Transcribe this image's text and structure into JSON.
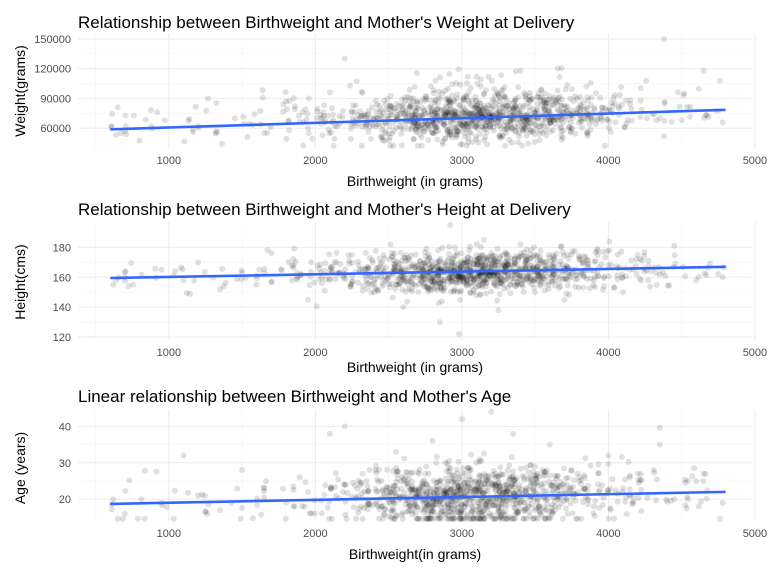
{
  "chart_data": [
    {
      "type": "scatter",
      "title": "Relationship between Birthweight and Mother's Weight at Delivery",
      "xlabel": "Birthweight (in grams)",
      "ylabel": "Weight(grams)",
      "xlim": [
        380,
        4980
      ],
      "ylim": [
        40000,
        155000
      ],
      "x_ticks": [
        1000,
        2000,
        3000,
        4000,
        5000
      ],
      "y_ticks": [
        60000,
        90000,
        120000,
        150000
      ],
      "x_tick_labels": [
        "1000",
        "2000",
        "3000",
        "4000",
        "5000"
      ],
      "y_tick_labels": [
        "60000",
        "90000",
        "120000",
        "150000"
      ],
      "grid": true,
      "point_color": "#000000",
      "point_opacity": 0.12,
      "fit_line_color": "#3366FF",
      "trend_line": [
        {
          "x": 600,
          "y": 58800
        },
        {
          "x": 4800,
          "y": 78500
        }
      ],
      "points": [
        {
          "x": 640,
          "y": 53000
        },
        {
          "x": 700,
          "y": 57000
        },
        {
          "x": 920,
          "y": 76000
        },
        {
          "x": 1200,
          "y": 62000
        },
        {
          "x": 1450,
          "y": 70000
        },
        {
          "x": 1650,
          "y": 55000
        },
        {
          "x": 1800,
          "y": 87000
        },
        {
          "x": 1950,
          "y": 60000
        },
        {
          "x": 2100,
          "y": 96000
        },
        {
          "x": 2200,
          "y": 130000
        },
        {
          "x": 2350,
          "y": 73000
        },
        {
          "x": 2450,
          "y": 52000
        },
        {
          "x": 2550,
          "y": 68000
        },
        {
          "x": 2650,
          "y": 90000
        },
        {
          "x": 2750,
          "y": 61000
        },
        {
          "x": 2820,
          "y": 108000
        },
        {
          "x": 2900,
          "y": 57000
        },
        {
          "x": 2950,
          "y": 74000
        },
        {
          "x": 3000,
          "y": 63000
        },
        {
          "x": 3050,
          "y": 85000
        },
        {
          "x": 3100,
          "y": 112000
        },
        {
          "x": 3150,
          "y": 59000
        },
        {
          "x": 3200,
          "y": 72000
        },
        {
          "x": 3250,
          "y": 95000
        },
        {
          "x": 3300,
          "y": 66000
        },
        {
          "x": 3350,
          "y": 80000
        },
        {
          "x": 3400,
          "y": 118000
        },
        {
          "x": 3450,
          "y": 62000
        },
        {
          "x": 3500,
          "y": 75000
        },
        {
          "x": 3550,
          "y": 91000
        },
        {
          "x": 3600,
          "y": 65000
        },
        {
          "x": 3700,
          "y": 83000
        },
        {
          "x": 3750,
          "y": 60000
        },
        {
          "x": 3850,
          "y": 102000
        },
        {
          "x": 3950,
          "y": 70000
        },
        {
          "x": 4050,
          "y": 66000
        },
        {
          "x": 4150,
          "y": 88000
        },
        {
          "x": 4300,
          "y": 74000
        },
        {
          "x": 4380,
          "y": 150000
        },
        {
          "x": 4500,
          "y": 68000
        },
        {
          "x": 4650,
          "y": 118000
        },
        {
          "x": 4760,
          "y": 108000
        },
        {
          "x": 4780,
          "y": 66000
        }
      ]
    },
    {
      "type": "scatter",
      "title": "Relationship between Birthweight and Mother's Height at Delivery",
      "xlabel": "Birthweight (in grams)",
      "ylabel": "Height(cms)",
      "xlim": [
        380,
        4980
      ],
      "ylim": [
        118,
        197
      ],
      "x_ticks": [
        1000,
        2000,
        3000,
        4000,
        5000
      ],
      "y_ticks": [
        120,
        140,
        160,
        180
      ],
      "x_tick_labels": [
        "1000",
        "2000",
        "3000",
        "4000",
        "5000"
      ],
      "y_tick_labels": [
        "120",
        "140",
        "160",
        "180"
      ],
      "grid": true,
      "point_color": "#000000",
      "point_opacity": 0.12,
      "fit_line_color": "#3366FF",
      "trend_line": [
        {
          "x": 600,
          "y": 159.5
        },
        {
          "x": 4800,
          "y": 167
        }
      ],
      "points": [
        {
          "x": 620,
          "y": 155
        },
        {
          "x": 700,
          "y": 160
        },
        {
          "x": 950,
          "y": 165
        },
        {
          "x": 1100,
          "y": 158
        },
        {
          "x": 1200,
          "y": 170
        },
        {
          "x": 1350,
          "y": 152
        },
        {
          "x": 1500,
          "y": 163
        },
        {
          "x": 1700,
          "y": 157
        },
        {
          "x": 1850,
          "y": 172
        },
        {
          "x": 1950,
          "y": 145
        },
        {
          "x": 2100,
          "y": 165
        },
        {
          "x": 2250,
          "y": 175
        },
        {
          "x": 2400,
          "y": 150
        },
        {
          "x": 2500,
          "y": 162
        },
        {
          "x": 2600,
          "y": 140
        },
        {
          "x": 2700,
          "y": 168
        },
        {
          "x": 2800,
          "y": 155
        },
        {
          "x": 2850,
          "y": 130
        },
        {
          "x": 2920,
          "y": 195
        },
        {
          "x": 2980,
          "y": 122
        },
        {
          "x": 3000,
          "y": 160
        },
        {
          "x": 3050,
          "y": 178
        },
        {
          "x": 3100,
          "y": 148
        },
        {
          "x": 3150,
          "y": 185
        },
        {
          "x": 3200,
          "y": 163
        },
        {
          "x": 3250,
          "y": 138
        },
        {
          "x": 3300,
          "y": 170
        },
        {
          "x": 3350,
          "y": 157
        },
        {
          "x": 3400,
          "y": 182
        },
        {
          "x": 3500,
          "y": 150
        },
        {
          "x": 3600,
          "y": 165
        },
        {
          "x": 3700,
          "y": 145
        },
        {
          "x": 3800,
          "y": 172
        },
        {
          "x": 3900,
          "y": 158
        },
        {
          "x": 4000,
          "y": 168
        },
        {
          "x": 4100,
          "y": 150
        },
        {
          "x": 4200,
          "y": 175
        },
        {
          "x": 4350,
          "y": 162
        },
        {
          "x": 4450,
          "y": 181
        },
        {
          "x": 4600,
          "y": 158
        },
        {
          "x": 4780,
          "y": 160
        }
      ]
    },
    {
      "type": "scatter",
      "title": "Linear relationship between Birthweight and Mother's Age",
      "xlabel": "Birthweight(in grams)",
      "ylabel": "Age (years)",
      "xlim": [
        380,
        4980
      ],
      "ylim": [
        14,
        44.5
      ],
      "x_ticks": [
        1000,
        2000,
        3000,
        4000,
        5000
      ],
      "y_ticks": [
        20,
        30,
        40
      ],
      "x_tick_labels": [
        "1000",
        "2000",
        "3000",
        "4000",
        "5000"
      ],
      "y_tick_labels": [
        "20",
        "30",
        "40"
      ],
      "grid": true,
      "point_color": "#000000",
      "point_opacity": 0.12,
      "fit_line_color": "#3366FF",
      "trend_line": [
        {
          "x": 600,
          "y": 18.7
        },
        {
          "x": 4800,
          "y": 22
        }
      ],
      "points": [
        {
          "x": 620,
          "y": 20
        },
        {
          "x": 700,
          "y": 16
        },
        {
          "x": 950,
          "y": 19
        },
        {
          "x": 1100,
          "y": 32
        },
        {
          "x": 1200,
          "y": 21
        },
        {
          "x": 1350,
          "y": 17
        },
        {
          "x": 1500,
          "y": 28
        },
        {
          "x": 1650,
          "y": 23
        },
        {
          "x": 1800,
          "y": 19
        },
        {
          "x": 1950,
          "y": 22
        },
        {
          "x": 2100,
          "y": 38
        },
        {
          "x": 2200,
          "y": 40
        },
        {
          "x": 2350,
          "y": 25
        },
        {
          "x": 2450,
          "y": 18
        },
        {
          "x": 2550,
          "y": 33
        },
        {
          "x": 2650,
          "y": 21
        },
        {
          "x": 2750,
          "y": 27
        },
        {
          "x": 2800,
          "y": 36
        },
        {
          "x": 2900,
          "y": 19
        },
        {
          "x": 2950,
          "y": 24
        },
        {
          "x": 3000,
          "y": 42
        },
        {
          "x": 3050,
          "y": 20
        },
        {
          "x": 3100,
          "y": 30
        },
        {
          "x": 3150,
          "y": 17
        },
        {
          "x": 3200,
          "y": 44
        },
        {
          "x": 3250,
          "y": 26
        },
        {
          "x": 3300,
          "y": 22
        },
        {
          "x": 3350,
          "y": 38
        },
        {
          "x": 3400,
          "y": 19
        },
        {
          "x": 3500,
          "y": 29
        },
        {
          "x": 3600,
          "y": 35
        },
        {
          "x": 3700,
          "y": 21
        },
        {
          "x": 3800,
          "y": 25
        },
        {
          "x": 3900,
          "y": 18
        },
        {
          "x": 4000,
          "y": 32
        },
        {
          "x": 4100,
          "y": 23
        },
        {
          "x": 4200,
          "y": 27
        },
        {
          "x": 4350,
          "y": 35
        },
        {
          "x": 4450,
          "y": 20
        },
        {
          "x": 4600,
          "y": 25
        },
        {
          "x": 4650,
          "y": 27
        },
        {
          "x": 4780,
          "y": 19
        }
      ]
    }
  ]
}
